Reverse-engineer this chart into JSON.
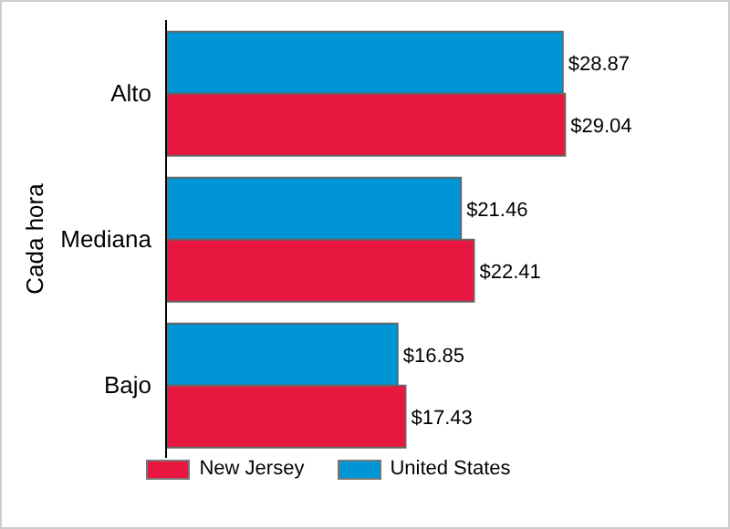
{
  "chart_data": {
    "type": "bar",
    "orientation": "horizontal",
    "ylabel": "Cada hora",
    "categories": [
      "Alto",
      "Mediana",
      "Bajo"
    ],
    "series": [
      {
        "name": "New Jersey",
        "color": "#e8173f",
        "values": [
          29.04,
          22.41,
          17.43
        ],
        "value_labels": [
          "$29.04",
          "$22.41",
          "$17.43"
        ]
      },
      {
        "name": "United States",
        "color": "#0096d6",
        "values": [
          28.87,
          21.46,
          16.85
        ],
        "value_labels": [
          "$28.87",
          "$21.46",
          "$16.85"
        ]
      }
    ],
    "legend": "bottom",
    "grid": false
  }
}
